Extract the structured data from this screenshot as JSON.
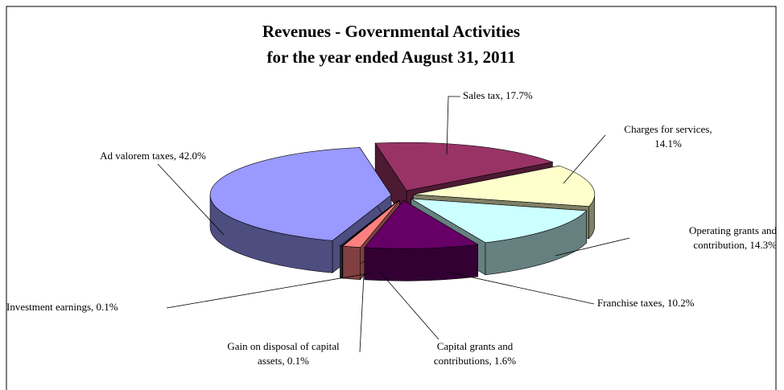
{
  "chart_data": {
    "type": "pie3d",
    "title": [
      "Revenues - Governmental Activities",
      "for the year ended August 31, 2011"
    ],
    "values": [
      17.7,
      14.1,
      14.3,
      10.2,
      1.6,
      0.1,
      0.1,
      42.0
    ],
    "value_labels": [
      "Sales tax, 17.7%",
      "Charges for services,\n14.1%",
      "Operating grants and\ncontribution, 14.3%",
      "Franchise taxes, 10.2%",
      "Capital grants and\ncontributions, 1.6%",
      "Gain on disposal of capital\nassets, 0.1%",
      "Investment earnings, 0.1%",
      "Ad valorem taxes, 42.0%"
    ],
    "colors": [
      "#993366",
      "#ffffcc",
      "#ccffff",
      "#660066",
      "#ff8080",
      "#0066cc",
      "#c0c0c0",
      "#9999ff"
    ]
  }
}
